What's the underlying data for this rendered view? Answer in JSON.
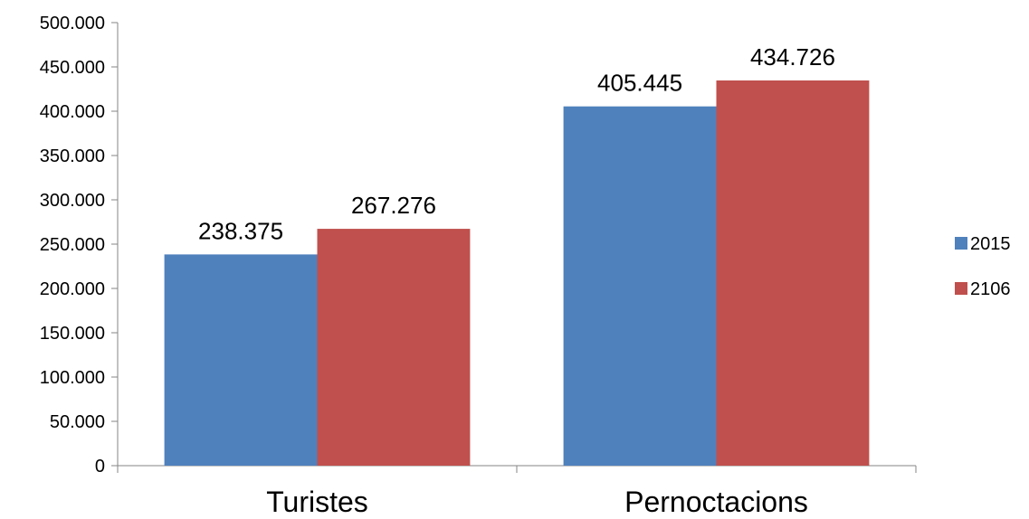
{
  "chart_data": {
    "type": "bar",
    "categories": [
      "Turistes",
      "Pernoctacions"
    ],
    "series": [
      {
        "name": "2015",
        "values": [
          238375,
          405445
        ],
        "labels": [
          "238.375",
          "405.445"
        ],
        "color": "#4F81BD"
      },
      {
        "name": "2106",
        "values": [
          267276,
          434726
        ],
        "labels": [
          "267.276",
          "434.726"
        ],
        "color": "#C0504D"
      }
    ],
    "ylim": [
      0,
      500000
    ],
    "yticks": [
      0,
      50000,
      100000,
      150000,
      200000,
      250000,
      300000,
      350000,
      400000,
      450000,
      500000
    ],
    "ytick_labels": [
      "0",
      "50.000",
      "100.000",
      "150.000",
      "200.000",
      "250.000",
      "300.000",
      "350.000",
      "400.000",
      "450.000",
      "500.000"
    ],
    "grid": false,
    "legend_position": "right"
  }
}
